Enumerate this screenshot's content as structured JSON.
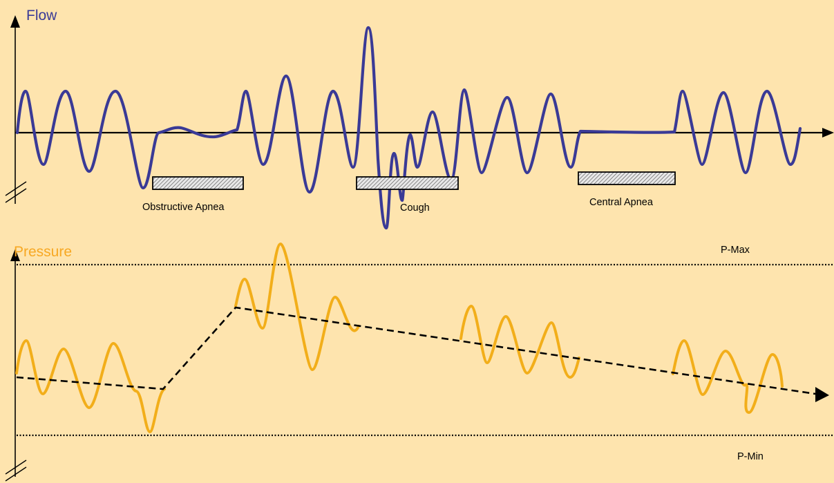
{
  "flow": {
    "title": "Flow",
    "title_color": "#3A3A96",
    "wave_color": "#3A3A96",
    "events": [
      {
        "label": "Obstructive Apnea"
      },
      {
        "label": "Cough"
      },
      {
        "label": "Central Apnea"
      }
    ]
  },
  "pressure": {
    "title": "Pressure",
    "title_color": "#F7A823",
    "wave_color": "#F2AE1A",
    "max_label": "P-Max",
    "min_label": "P-Min"
  },
  "colors": {
    "background": "#FEE4AE",
    "axis": "#000000"
  }
}
